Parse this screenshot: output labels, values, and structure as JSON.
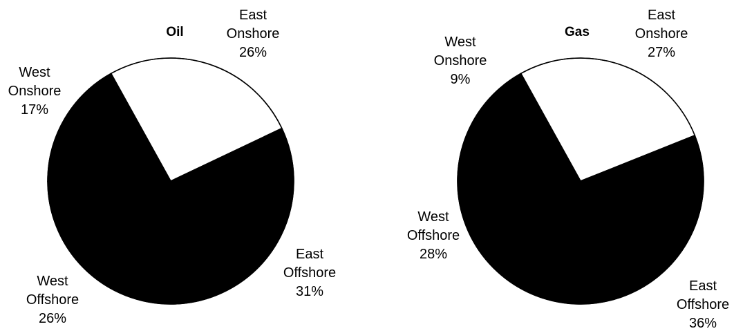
{
  "chart_data": [
    {
      "type": "pie",
      "title": "Oil",
      "slices": [
        {
          "name": "East Onshore",
          "value": 26,
          "value_label": "26%",
          "color": "#ffffff"
        },
        {
          "name": "East Offshore",
          "value": 31,
          "value_label": "31%",
          "color": "#000000"
        },
        {
          "name": "West Offshore",
          "value": 26,
          "value_label": "26%",
          "color": "#000000"
        },
        {
          "name": "West Onshore",
          "value": 17,
          "value_label": "17%",
          "color": "#000000"
        }
      ],
      "legend": "none"
    },
    {
      "type": "pie",
      "title": "Gas",
      "slices": [
        {
          "name": "East Onshore",
          "value": 27,
          "value_label": "27%",
          "color": "#ffffff"
        },
        {
          "name": "East Offshore",
          "value": 36,
          "value_label": "36%",
          "color": "#000000"
        },
        {
          "name": "West Offshore",
          "value": 28,
          "value_label": "28%",
          "color": "#000000"
        },
        {
          "name": "West Onshore",
          "value": 9,
          "value_label": "9%",
          "color": "#000000"
        }
      ],
      "legend": "none"
    }
  ],
  "colors": {
    "outline": "#000000",
    "background": "#ffffff"
  }
}
